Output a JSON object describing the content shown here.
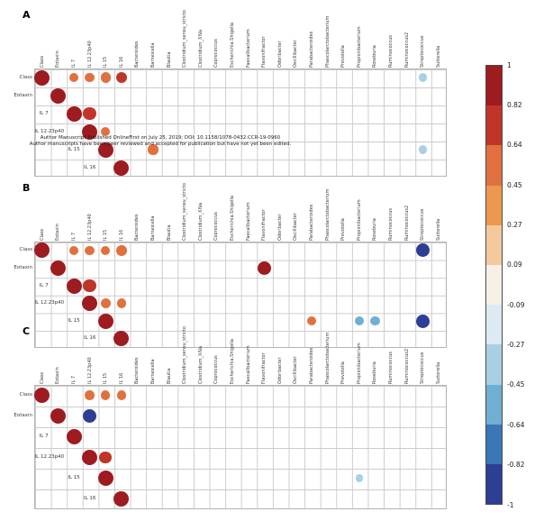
{
  "watermark": {
    "line1": "Author Manuscript Published OnlineFirst on July 25, 2019; DOI: 10.1158/1078-0432.CCR-19-0960",
    "line2": "Author manuscripts have been peer reviewed and accepted for publication but have not yet been edited."
  },
  "chart_data": {
    "type": "heatmap",
    "subtype": "correlation-circle-matrix",
    "rows": [
      "Class",
      "Eotaxin",
      "IL 7",
      "IL 12.23p40",
      "IL 15",
      "IL 16"
    ],
    "columns": [
      "Class",
      "Eotaxin",
      "IL 7",
      "IL 12.23p40",
      "IL 15",
      "IL 16",
      "Bacteroides",
      "Barnesiella",
      "Blautia",
      "Clostridium_sensu_stricto",
      "Clostridium_XIVa",
      "Coprococcus",
      "Escherichia.Shigella",
      "Faecalibacterium",
      "Flavonifractor",
      "Odoribacter",
      "Oscillibacter",
      "Parabacteroides",
      "Phascolarctobacterium",
      "Prevotella",
      "Propionibacterium",
      "Roseburia",
      "Ruminococcus",
      "Ruminococcus2",
      "Streptococcus",
      "Sutterella"
    ],
    "panels": [
      {
        "label": "A",
        "points": [
          {
            "row": "Class",
            "col": "Class",
            "v": 1
          },
          {
            "row": "Class",
            "col": "IL 7",
            "v": 0.5
          },
          {
            "row": "Class",
            "col": "IL 12.23p40",
            "v": 0.5
          },
          {
            "row": "Class",
            "col": "IL 15",
            "v": 0.55
          },
          {
            "row": "Class",
            "col": "IL 16",
            "v": 0.65
          },
          {
            "row": "Class",
            "col": "Streptococcus",
            "v": -0.4
          },
          {
            "row": "Eotaxin",
            "col": "Eotaxin",
            "v": 1
          },
          {
            "row": "IL 7",
            "col": "IL 7",
            "v": 1
          },
          {
            "row": "IL 7",
            "col": "IL 12.23p40",
            "v": 0.8
          },
          {
            "row": "IL 12.23p40",
            "col": "IL 12.23p40",
            "v": 1
          },
          {
            "row": "IL 12.23p40",
            "col": "IL 15",
            "v": 0.5
          },
          {
            "row": "IL 15",
            "col": "IL 15",
            "v": 1
          },
          {
            "row": "IL 15",
            "col": "Barnesiella",
            "v": 0.55
          },
          {
            "row": "IL 15",
            "col": "Streptococcus",
            "v": -0.4
          },
          {
            "row": "IL 16",
            "col": "IL 16",
            "v": 1
          }
        ]
      },
      {
        "label": "B",
        "points": [
          {
            "row": "Class",
            "col": "Class",
            "v": 1
          },
          {
            "row": "Class",
            "col": "IL 7",
            "v": 0.5
          },
          {
            "row": "Class",
            "col": "IL 12.23p40",
            "v": 0.5
          },
          {
            "row": "Class",
            "col": "IL 15",
            "v": 0.5
          },
          {
            "row": "Class",
            "col": "IL 16",
            "v": 0.6
          },
          {
            "row": "Class",
            "col": "Streptococcus",
            "v": -0.85
          },
          {
            "row": "Eotaxin",
            "col": "Eotaxin",
            "v": 1
          },
          {
            "row": "Eotaxin",
            "col": "Flavonifractor",
            "v": 0.85
          },
          {
            "row": "IL 7",
            "col": "IL 7",
            "v": 1
          },
          {
            "row": "IL 7",
            "col": "IL 12.23p40",
            "v": 0.8
          },
          {
            "row": "IL 12.23p40",
            "col": "IL 12.23p40",
            "v": 1
          },
          {
            "row": "IL 12.23p40",
            "col": "IL 15",
            "v": 0.55
          },
          {
            "row": "IL 12.23p40",
            "col": "IL 16",
            "v": 0.5
          },
          {
            "row": "IL 15",
            "col": "IL 15",
            "v": 1
          },
          {
            "row": "IL 15",
            "col": "Parabacteroides",
            "v": 0.5
          },
          {
            "row": "IL 15",
            "col": "Propionibacterium",
            "v": -0.5
          },
          {
            "row": "IL 15",
            "col": "Roseburia",
            "v": -0.5
          },
          {
            "row": "IL 15",
            "col": "Streptococcus",
            "v": -0.85
          },
          {
            "row": "IL 16",
            "col": "IL 16",
            "v": 1
          }
        ]
      },
      {
        "label": "C",
        "points": [
          {
            "row": "Class",
            "col": "Class",
            "v": 1
          },
          {
            "row": "Class",
            "col": "IL 12.23p40",
            "v": 0.5
          },
          {
            "row": "Class",
            "col": "IL 15",
            "v": 0.5
          },
          {
            "row": "Class",
            "col": "IL 16",
            "v": 0.5
          },
          {
            "row": "Eotaxin",
            "col": "Eotaxin",
            "v": 1
          },
          {
            "row": "Eotaxin",
            "col": "IL 12.23p40",
            "v": -0.85
          },
          {
            "row": "IL 7",
            "col": "IL 7",
            "v": 1
          },
          {
            "row": "IL 12.23p40",
            "col": "IL 12.23p40",
            "v": 1
          },
          {
            "row": "IL 12.23p40",
            "col": "IL 15",
            "v": 0.75
          },
          {
            "row": "IL 15",
            "col": "IL 15",
            "v": 1
          },
          {
            "row": "IL 15",
            "col": "Propionibacterium",
            "v": -0.35
          },
          {
            "row": "IL 16",
            "col": "IL 16",
            "v": 1
          }
        ]
      }
    ],
    "colorscale": {
      "range": [
        -1,
        1
      ],
      "ticks": [
        "1",
        "0.82",
        "0.64",
        "0.45",
        "0.27",
        "0.09",
        "-0.09",
        "-0.27",
        "-0.45",
        "-0.64",
        "-0.82",
        "-1"
      ],
      "colors": [
        "#9e1b20",
        "#c13529",
        "#e0713e",
        "#ec9850",
        "#f5c99e",
        "#f7f0e7",
        "#dcebf2",
        "#a9cfe5",
        "#6fafd2",
        "#3a77b5",
        "#2d3e94"
      ]
    }
  }
}
